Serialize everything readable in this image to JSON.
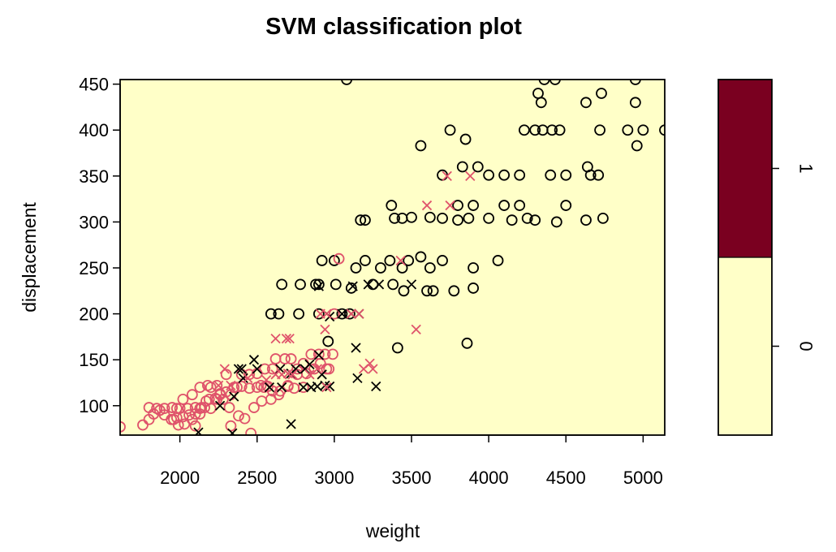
{
  "chart_data": {
    "type": "scatter",
    "title": "SVM classification plot",
    "xlabel": "weight",
    "ylabel": "displacement",
    "xlim": [
      1613,
      5140
    ],
    "ylim": [
      68,
      455
    ],
    "x_ticks": [
      2000,
      2500,
      3000,
      3500,
      4000,
      4500,
      5000
    ],
    "y_ticks": [
      100,
      150,
      200,
      250,
      300,
      350,
      400,
      450
    ],
    "background_region_color": "#FFFFC8",
    "class_colors": {
      "0": "#FFFFC8",
      "1": "#7A0020"
    },
    "legend": {
      "placement": "right",
      "entries": [
        {
          "label": "0",
          "color": "#FFFFC8",
          "fraction": 0.5
        },
        {
          "label": "1",
          "color": "#7A0020",
          "fraction": 0.5
        }
      ]
    },
    "series": [
      {
        "marker": "o",
        "color": "#000000",
        "points": [
          [
            3080,
            455
          ],
          [
            4360,
            455
          ],
          [
            4430,
            455
          ],
          [
            4950,
            455
          ],
          [
            4320,
            440
          ],
          [
            4730,
            440
          ],
          [
            4340,
            430
          ],
          [
            4630,
            430
          ],
          [
            4950,
            430
          ],
          [
            3750,
            400
          ],
          [
            3850,
            390
          ],
          [
            4230,
            400
          ],
          [
            4300,
            400
          ],
          [
            4350,
            400
          ],
          [
            4410,
            400
          ],
          [
            4460,
            400
          ],
          [
            4720,
            400
          ],
          [
            4900,
            400
          ],
          [
            5000,
            400
          ],
          [
            5140,
            400
          ],
          [
            4960,
            383
          ],
          [
            3560,
            383
          ],
          [
            3830,
            360
          ],
          [
            3930,
            360
          ],
          [
            4640,
            360
          ],
          [
            4660,
            351
          ],
          [
            3700,
            351
          ],
          [
            4000,
            351
          ],
          [
            4100,
            351
          ],
          [
            4200,
            351
          ],
          [
            4400,
            351
          ],
          [
            4500,
            351
          ],
          [
            4710,
            351
          ],
          [
            3370,
            318
          ],
          [
            3800,
            318
          ],
          [
            3900,
            318
          ],
          [
            4100,
            318
          ],
          [
            4200,
            318
          ],
          [
            4500,
            318
          ],
          [
            3390,
            304
          ],
          [
            3440,
            304
          ],
          [
            3700,
            304
          ],
          [
            3870,
            304
          ],
          [
            4000,
            304
          ],
          [
            4250,
            304
          ],
          [
            4740,
            304
          ],
          [
            3170,
            302
          ],
          [
            3200,
            302
          ],
          [
            3500,
            305
          ],
          [
            3620,
            305
          ],
          [
            3800,
            302
          ],
          [
            4150,
            302
          ],
          [
            4300,
            302
          ],
          [
            4440,
            300
          ],
          [
            4630,
            302
          ],
          [
            2920,
            258
          ],
          [
            3000,
            258
          ],
          [
            3200,
            258
          ],
          [
            3360,
            258
          ],
          [
            3480,
            258
          ],
          [
            3560,
            262
          ],
          [
            3700,
            258
          ],
          [
            4060,
            258
          ],
          [
            3140,
            250
          ],
          [
            3300,
            250
          ],
          [
            3440,
            250
          ],
          [
            3620,
            250
          ],
          [
            3900,
            250
          ],
          [
            3110,
            228
          ],
          [
            3250,
            232
          ],
          [
            3380,
            232
          ],
          [
            3450,
            225
          ],
          [
            3600,
            225
          ],
          [
            3640,
            225
          ],
          [
            3775,
            225
          ],
          [
            3900,
            228
          ],
          [
            2660,
            232
          ],
          [
            2780,
            232
          ],
          [
            2880,
            232
          ],
          [
            2900,
            232
          ],
          [
            3010,
            232
          ],
          [
            2590,
            200
          ],
          [
            2640,
            200
          ],
          [
            2770,
            200
          ],
          [
            2900,
            200
          ],
          [
            3050,
            200
          ],
          [
            3100,
            200
          ],
          [
            3860,
            168
          ],
          [
            3410,
            163
          ],
          [
            2960,
            170
          ]
        ]
      },
      {
        "marker": "o",
        "color": "#DF536B",
        "points": [
          [
            1613,
            77
          ],
          [
            1760,
            79
          ],
          [
            1800,
            85
          ],
          [
            1830,
            91
          ],
          [
            1870,
            95
          ],
          [
            1900,
            97
          ],
          [
            1950,
            98
          ],
          [
            1980,
            97
          ],
          [
            2000,
            97
          ],
          [
            2050,
            97
          ],
          [
            2100,
            98
          ],
          [
            2130,
            97
          ],
          [
            2200,
            97
          ],
          [
            1960,
            85
          ],
          [
            2020,
            88
          ],
          [
            2060,
            90
          ],
          [
            2130,
            91
          ],
          [
            2160,
            98
          ],
          [
            2190,
            107
          ],
          [
            2240,
            107
          ],
          [
            1800,
            98
          ],
          [
            1850,
            97
          ],
          [
            1900,
            90
          ],
          [
            1945,
            85
          ],
          [
            1990,
            79
          ],
          [
            2030,
            80
          ],
          [
            2080,
            85
          ],
          [
            2100,
            91
          ],
          [
            2140,
            98
          ],
          [
            2170,
            105
          ],
          [
            2230,
            108
          ],
          [
            2260,
            112
          ],
          [
            2300,
            115
          ],
          [
            2330,
            112
          ],
          [
            2370,
            120
          ],
          [
            2400,
            121
          ],
          [
            2450,
            119
          ],
          [
            2500,
            120
          ],
          [
            2525,
            122
          ],
          [
            2545,
            120
          ],
          [
            2570,
            121
          ],
          [
            2600,
            116
          ],
          [
            2650,
            116
          ],
          [
            2700,
            121
          ],
          [
            2740,
            119
          ],
          [
            2800,
            120
          ],
          [
            2260,
            113
          ],
          [
            2300,
            134
          ],
          [
            2350,
            120
          ],
          [
            2400,
            134
          ],
          [
            2450,
            134
          ],
          [
            2500,
            135
          ],
          [
            2550,
            140
          ],
          [
            2600,
            140
          ],
          [
            2620,
            151
          ],
          [
            2680,
            151
          ],
          [
            2720,
            151
          ],
          [
            2760,
            140
          ],
          [
            2800,
            146
          ],
          [
            2850,
            156
          ],
          [
            2900,
            156
          ],
          [
            2950,
            140
          ],
          [
            2200,
            120
          ],
          [
            2240,
            122
          ],
          [
            2280,
            107
          ],
          [
            2320,
            98
          ],
          [
            2380,
            89
          ],
          [
            2420,
            86
          ],
          [
            2480,
            98
          ],
          [
            2530,
            105
          ],
          [
            2590,
            107
          ],
          [
            2640,
            112
          ],
          [
            2700,
            122
          ],
          [
            2760,
            134
          ],
          [
            2820,
            135
          ],
          [
            2870,
            140
          ],
          [
            2910,
            146
          ],
          [
            2940,
            156
          ],
          [
            2990,
            156
          ],
          [
            3000,
            200
          ],
          [
            2965,
            140
          ],
          [
            2460,
            70
          ],
          [
            2330,
            78
          ],
          [
            2100,
            78
          ],
          [
            1980,
            87
          ],
          [
            2020,
            107
          ],
          [
            2080,
            112
          ],
          [
            2130,
            120
          ],
          [
            2180,
            122
          ],
          [
            3030,
            260
          ]
        ]
      },
      {
        "marker": "x",
        "color": "#000000",
        "points": [
          [
            2120,
            71
          ],
          [
            2340,
            70
          ],
          [
            2720,
            80
          ],
          [
            2260,
            100
          ],
          [
            2350,
            110
          ],
          [
            2410,
            130
          ],
          [
            2580,
            120
          ],
          [
            2660,
            120
          ],
          [
            2720,
            135
          ],
          [
            2800,
            120
          ],
          [
            2850,
            120
          ],
          [
            2890,
            121
          ],
          [
            2920,
            134
          ],
          [
            2970,
            121
          ],
          [
            2380,
            140
          ],
          [
            2400,
            140
          ],
          [
            2480,
            150
          ],
          [
            2500,
            140
          ],
          [
            2650,
            140
          ],
          [
            2750,
            140
          ],
          [
            2810,
            140
          ],
          [
            2840,
            145
          ],
          [
            2900,
            155
          ],
          [
            2940,
            122
          ],
          [
            3150,
            130
          ],
          [
            3270,
            121
          ],
          [
            3140,
            163
          ],
          [
            2970,
            197
          ],
          [
            3050,
            200
          ],
          [
            3110,
            200
          ],
          [
            3160,
            200
          ],
          [
            2900,
            230
          ],
          [
            3120,
            230
          ],
          [
            3220,
            232
          ],
          [
            3290,
            232
          ],
          [
            3500,
            232
          ]
        ]
      },
      {
        "marker": "x",
        "color": "#DF536B",
        "points": [
          [
            2620,
            173
          ],
          [
            2690,
            173
          ],
          [
            2710,
            173
          ],
          [
            2910,
            200
          ],
          [
            2950,
            200
          ],
          [
            2940,
            183
          ],
          [
            3110,
            200
          ],
          [
            3160,
            200
          ],
          [
            3230,
            146
          ],
          [
            3250,
            140
          ],
          [
            3190,
            140
          ],
          [
            3530,
            183
          ],
          [
            3430,
            258
          ],
          [
            3730,
            350
          ],
          [
            3880,
            350
          ],
          [
            3600,
            318
          ],
          [
            3750,
            318
          ],
          [
            2660,
            134
          ],
          [
            2730,
            134
          ],
          [
            2840,
            134
          ],
          [
            2890,
            140
          ],
          [
            2950,
            120
          ],
          [
            2250,
            122
          ],
          [
            2290,
            140
          ],
          [
            2330,
            122
          ],
          [
            2440,
            130
          ],
          [
            2560,
            128
          ],
          [
            2620,
            134
          ],
          [
            2700,
            135
          ]
        ]
      }
    ]
  }
}
